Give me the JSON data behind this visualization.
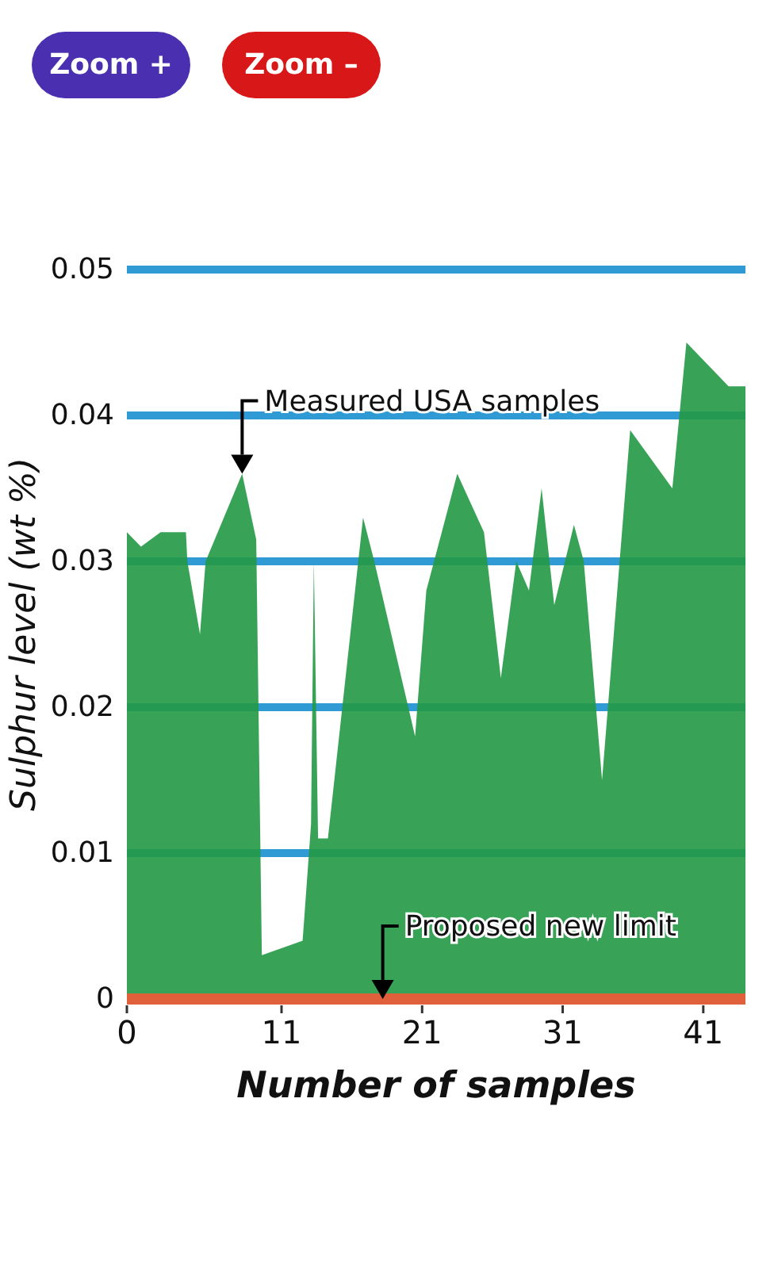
{
  "chart_data": {
    "type": "area",
    "xlabel": "Number of samples",
    "ylabel": "Sulphur level (wt %)",
    "x": [
      0,
      1,
      2.4,
      4.2,
      4.3,
      5.2,
      5.6,
      8.2,
      9.2,
      9.6,
      12.5,
      13.1,
      13.3,
      13.6,
      14.3,
      16.8,
      17.6,
      20.5,
      21.3,
      23.5,
      25.4,
      26.6,
      27.7,
      28.6,
      29.5,
      30.4,
      31.8,
      32.5,
      33.8,
      35.8,
      38.8,
      39.8,
      42.8,
      44
    ],
    "series": [
      {
        "color": "#229944",
        "values": [
          0.032,
          0.031,
          0.032,
          0.032,
          0.03,
          0.025,
          0.03,
          0.036,
          0.0315,
          0.003,
          0.004,
          0.012,
          0.03,
          0.011,
          0.011,
          0.033,
          0.03,
          0.018,
          0.028,
          0.036,
          0.032,
          0.022,
          0.03,
          0.028,
          0.035,
          0.027,
          0.0325,
          0.03,
          0.015,
          0.039,
          0.035,
          0.045,
          0.042,
          0.042
        ]
      }
    ],
    "xlim": [
      0,
      44
    ],
    "xticks": [
      0,
      11,
      21,
      31,
      41
    ],
    "ylim": [
      0,
      0.05
    ],
    "yticks": [
      0,
      0.01,
      0.02,
      0.03,
      0.04,
      0.05
    ],
    "grid": "y",
    "annotations": [
      "Zoom +",
      "Zoom –",
      {
        "text": "Measured USA samples",
        "x": 8.2,
        "y": 0.036
      },
      {
        "text": "Proposed new limit",
        "x": 18.2,
        "y": 0
      }
    ]
  }
}
